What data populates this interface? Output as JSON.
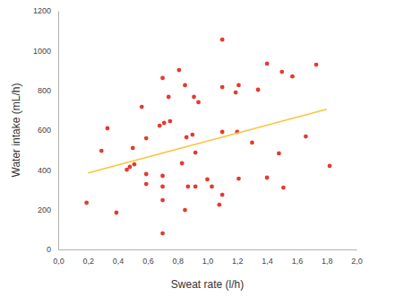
{
  "chart_data": {
    "type": "scatter",
    "x_label": "Sweat rate (l/h)",
    "y_label": "Water intake (mL/h)",
    "xlim": [
      0,
      2
    ],
    "ylim": [
      0,
      1200
    ],
    "xticks": [
      {
        "value": 0,
        "label": "0,0"
      },
      {
        "value": 0.2,
        "label": "0,2"
      },
      {
        "value": 0.4,
        "label": "0,4"
      },
      {
        "value": 0.6,
        "label": "0,6"
      },
      {
        "value": 0.8,
        "label": "0,8"
      },
      {
        "value": 1,
        "label": "1,0"
      },
      {
        "value": 1.2,
        "label": "1,2"
      },
      {
        "value": 1.4,
        "label": "1,4"
      },
      {
        "value": 1.6,
        "label": "1,6"
      },
      {
        "value": 1.8,
        "label": "1,8"
      },
      {
        "value": 2,
        "label": "2,0"
      }
    ],
    "yticks": [
      0,
      200,
      400,
      600,
      800,
      1000,
      1200
    ],
    "grid": false,
    "series": [
      {
        "type": "scatter",
        "color": "#e53a2f",
        "marker": "circle",
        "x": [
          0.19,
          0.29,
          0.33,
          0.39,
          0.46,
          0.48,
          0.5,
          0.51,
          0.56,
          0.59,
          0.59,
          0.59,
          0.68,
          0.7,
          0.7,
          0.7,
          0.7,
          0.7,
          0.71,
          0.74,
          0.75,
          0.81,
          0.83,
          0.85,
          0.85,
          0.86,
          0.87,
          0.9,
          0.91,
          0.92,
          0.92,
          0.94,
          1.0,
          1.03,
          1.08,
          1.1,
          1.1,
          1.1,
          1.1,
          1.19,
          1.2,
          1.21,
          1.21,
          1.3,
          1.34,
          1.4,
          1.4,
          1.48,
          1.5,
          1.51,
          1.57,
          1.66,
          1.73,
          1.82
        ],
        "values": [
          235,
          496,
          609,
          185,
          401,
          415,
          510,
          428,
          717,
          559,
          379,
          329,
          622,
          862,
          248,
          316,
          370,
          81,
          636,
          767,
          645,
          902,
          433,
          826,
          198,
          564,
          316,
          577,
          767,
          487,
          316,
          740,
          352,
          316,
          225,
          1055,
          816,
          275,
          591,
          789,
          591,
          826,
          356,
          537,
          803,
          934,
          361,
          483,
          893,
          311,
          870,
          568,
          929,
          420
        ]
      },
      {
        "type": "line",
        "color": "#f9c53a",
        "line_style": "solid",
        "x": [
          0.2,
          1.8
        ],
        "values": [
          385,
          705
        ]
      }
    ]
  }
}
